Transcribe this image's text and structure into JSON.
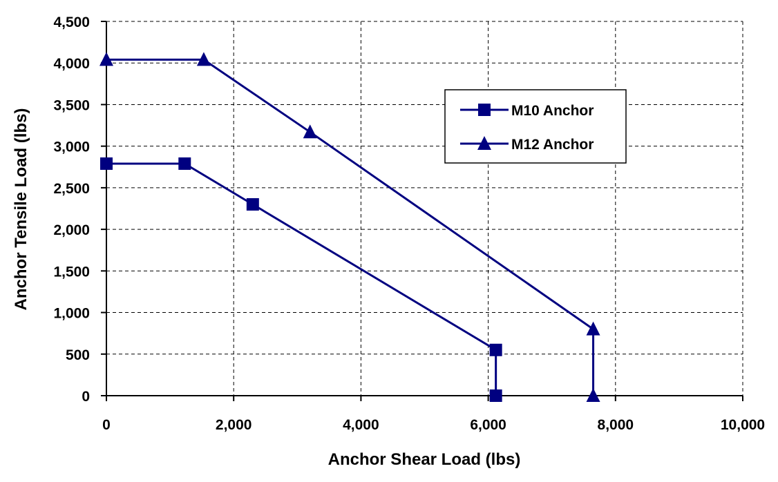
{
  "chart_data": {
    "type": "line",
    "title": "",
    "xlabel": "Anchor Shear Load (lbs)",
    "ylabel": "Anchor Tensile Load (lbs)",
    "xlim": [
      0,
      10000
    ],
    "ylim": [
      0,
      4500
    ],
    "x_ticks": [
      0,
      2000,
      4000,
      6000,
      8000,
      10000
    ],
    "y_ticks": [
      0,
      500,
      1000,
      1500,
      2000,
      2500,
      3000,
      3500,
      4000,
      4500
    ],
    "x_tick_labels": [
      "0",
      "2,000",
      "4,000",
      "6,000",
      "8,000",
      "10,000"
    ],
    "y_tick_labels": [
      "0",
      "500",
      "1,000",
      "1,500",
      "2,000",
      "2,500",
      "3,000",
      "3,500",
      "4,000",
      "4,500"
    ],
    "grid": true,
    "grid_style": "dashed",
    "legend_position": "right",
    "series": [
      {
        "name": "M10 Anchor",
        "marker": "square",
        "color": "#000080",
        "points": [
          [
            0,
            2790
          ],
          [
            1230,
            2790
          ],
          [
            2300,
            2300
          ],
          [
            6120,
            550
          ],
          [
            6120,
            0
          ]
        ]
      },
      {
        "name": "M12 Anchor",
        "marker": "triangle",
        "color": "#000080",
        "points": [
          [
            0,
            4040
          ],
          [
            1530,
            4040
          ],
          [
            3200,
            3170
          ],
          [
            7650,
            800
          ],
          [
            7650,
            0
          ]
        ]
      }
    ]
  }
}
